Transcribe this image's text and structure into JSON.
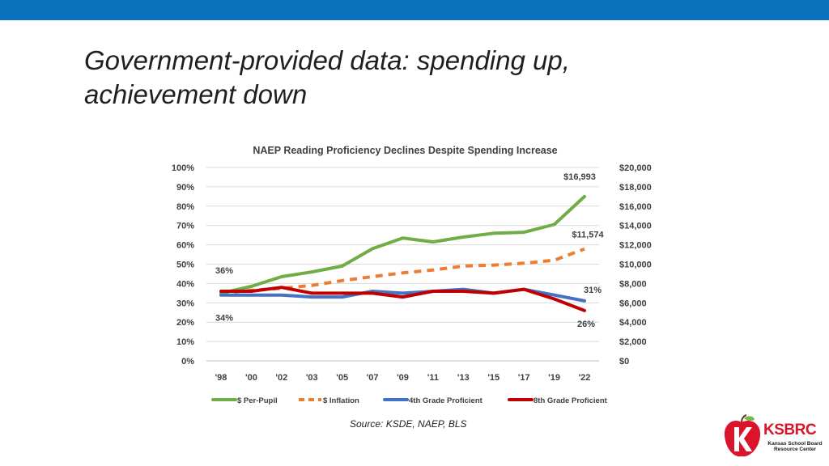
{
  "slide": {
    "title": "Government-provided data: spending up, achievement down",
    "source": "Source: KSDE, NAEP, BLS"
  },
  "logo": {
    "name": "KSBRC",
    "subtitle": "Kansas School Board Resource Center"
  },
  "colors": {
    "top_bar": "#0b72bd",
    "per_pupil": "#70ad47",
    "inflation": "#ed7d31",
    "grade4": "#4472c4",
    "grade8": "#c00000",
    "logo_red": "#d9142b"
  },
  "chart_data": {
    "type": "line",
    "title": "NAEP Reading Proficiency Declines Despite Spending Increase",
    "categories": [
      "'98",
      "'00",
      "'02",
      "'03",
      "'05",
      "'07",
      "'09",
      "'11",
      "'13",
      "'15",
      "'17",
      "'19",
      "'22"
    ],
    "left_axis": {
      "ticks": [
        "0%",
        "10%",
        "20%",
        "30%",
        "40%",
        "50%",
        "60%",
        "70%",
        "80%",
        "90%",
        "100%"
      ],
      "range": [
        0,
        100
      ]
    },
    "right_axis": {
      "ticks": [
        "$0",
        "$2,000",
        "$4,000",
        "$6,000",
        "$8,000",
        "$10,000",
        "$12,000",
        "$14,000",
        "$16,000",
        "$18,000",
        "$20,000"
      ],
      "range": [
        0,
        20000
      ]
    },
    "grid": true,
    "legend_position": "bottom",
    "series": [
      {
        "name": "$ Per-Pupil",
        "axis": "right",
        "style": "solid",
        "color_key": "per_pupil",
        "values": [
          7000,
          7700,
          8700,
          9200,
          9800,
          11600,
          12700,
          12300,
          12800,
          13200,
          13300,
          14100,
          16993
        ]
      },
      {
        "name": "$ Inflation",
        "axis": "right",
        "style": "dashed",
        "color_key": "inflation",
        "values": [
          7000,
          7300,
          7500,
          7800,
          8300,
          8700,
          9100,
          9400,
          9800,
          9900,
          10100,
          10400,
          11574
        ]
      },
      {
        "name": "4th Grade Proficient",
        "axis": "left",
        "style": "solid",
        "color_key": "grade4",
        "values": [
          34,
          34,
          34,
          33,
          33,
          36,
          35,
          36,
          37,
          35,
          37,
          34,
          31
        ]
      },
      {
        "name": "8th Grade Proficient",
        "axis": "left",
        "style": "solid",
        "color_key": "grade8",
        "values": [
          36,
          36,
          38,
          35,
          35,
          35,
          33,
          36,
          36,
          35,
          37,
          32,
          26
        ]
      }
    ],
    "annotations": [
      {
        "text": "36%",
        "series": 3,
        "index": 0,
        "placement": "above-left"
      },
      {
        "text": "34%",
        "series": 2,
        "index": 0,
        "placement": "below-left"
      },
      {
        "text": "$16,993",
        "series": 0,
        "index": 12,
        "placement": "above"
      },
      {
        "text": "$11,574",
        "series": 1,
        "index": 12,
        "placement": "above"
      },
      {
        "text": "31%",
        "series": 2,
        "index": 12,
        "placement": "above"
      },
      {
        "text": "26%",
        "series": 3,
        "index": 12,
        "placement": "below"
      }
    ]
  }
}
